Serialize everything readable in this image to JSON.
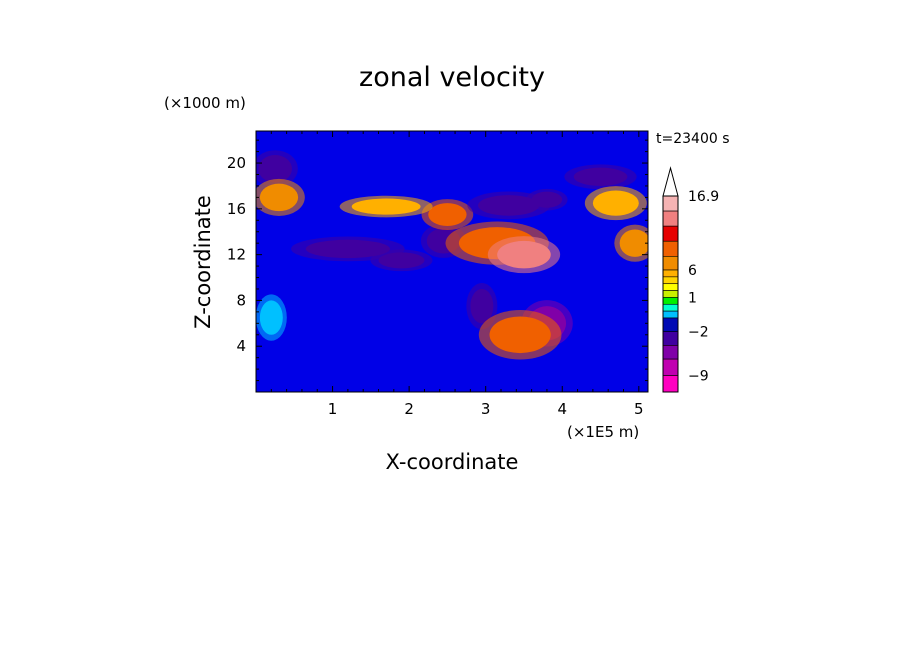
{
  "chart_data": {
    "type": "heatmap",
    "title": "zonal velocity",
    "xlabel": "X-coordinate",
    "ylabel": "Z-coordinate",
    "x_unit_label": "(×1E5 m)",
    "y_unit_label": "(×1000 m)",
    "time_label": "t=23400 s",
    "xlim": [
      0,
      5.12
    ],
    "ylim": [
      0,
      22.8
    ],
    "x_ticks": [
      "1",
      "2",
      "3",
      "4",
      "5"
    ],
    "y_ticks": [
      "4",
      "8",
      "12",
      "16",
      "20"
    ],
    "colorbar": {
      "levels": [
        16.9,
        14.5,
        12,
        9.5,
        8,
        6,
        4,
        3,
        2,
        1,
        0.5,
        0,
        -1,
        -2,
        -4,
        -6,
        -9,
        -12
      ],
      "labels": [
        "16.9",
        "6",
        "1",
        "−2",
        "−9"
      ],
      "colors": [
        "#ffffff",
        "#f5b3b3",
        "#f08080",
        "#e60000",
        "#f06000",
        "#f08c00",
        "#ffb000",
        "#ffd400",
        "#ffff00",
        "#c8f000",
        "#00f000",
        "#00ffd0",
        "#00c0ff",
        "#000ab4",
        "#4000a0",
        "#8000a8",
        "#c000b0",
        "#ff00c0"
      ],
      "extend": "max"
    },
    "features": [
      {
        "x": 0.25,
        "z": 19.5,
        "rx": 0.22,
        "ry": 1.2,
        "value": -4
      },
      {
        "x": 0.3,
        "z": 17.0,
        "rx": 0.25,
        "ry": 1.2,
        "value": 6
      },
      {
        "x": 1.2,
        "z": 12.5,
        "rx": 0.55,
        "ry": 0.8,
        "value": -4
      },
      {
        "x": 1.9,
        "z": 11.5,
        "rx": 0.3,
        "ry": 0.7,
        "value": -4
      },
      {
        "x": 2.45,
        "z": 13.2,
        "rx": 0.22,
        "ry": 1.1,
        "value": -4
      },
      {
        "x": 2.5,
        "z": 15.5,
        "rx": 0.25,
        "ry": 1.0,
        "value": 8
      },
      {
        "x": 3.15,
        "z": 13.0,
        "rx": 0.5,
        "ry": 1.4,
        "value": 8
      },
      {
        "x": 3.5,
        "z": 12.0,
        "rx": 0.35,
        "ry": 1.2,
        "value": 12
      },
      {
        "x": 3.3,
        "z": 16.3,
        "rx": 0.4,
        "ry": 0.9,
        "value": -4
      },
      {
        "x": 3.8,
        "z": 16.8,
        "rx": 0.2,
        "ry": 0.7,
        "value": -4
      },
      {
        "x": 2.95,
        "z": 7.5,
        "rx": 0.15,
        "ry": 1.5,
        "value": -4
      },
      {
        "x": 3.8,
        "z": 6.0,
        "rx": 0.25,
        "ry": 1.5,
        "value": -6
      },
      {
        "x": 3.45,
        "z": 5.0,
        "rx": 0.4,
        "ry": 1.6,
        "value": 8
      },
      {
        "x": 4.5,
        "z": 18.8,
        "rx": 0.35,
        "ry": 0.8,
        "value": -4
      },
      {
        "x": 4.7,
        "z": 16.5,
        "rx": 0.3,
        "ry": 1.1,
        "value": 4
      },
      {
        "x": 4.95,
        "z": 13.0,
        "rx": 0.2,
        "ry": 1.2,
        "value": 6
      },
      {
        "x": 0.2,
        "z": 6.5,
        "rx": 0.15,
        "ry": 1.5,
        "value": -1
      },
      {
        "x": 1.7,
        "z": 16.2,
        "rx": 0.45,
        "ry": 0.7,
        "value": 4
      }
    ]
  }
}
